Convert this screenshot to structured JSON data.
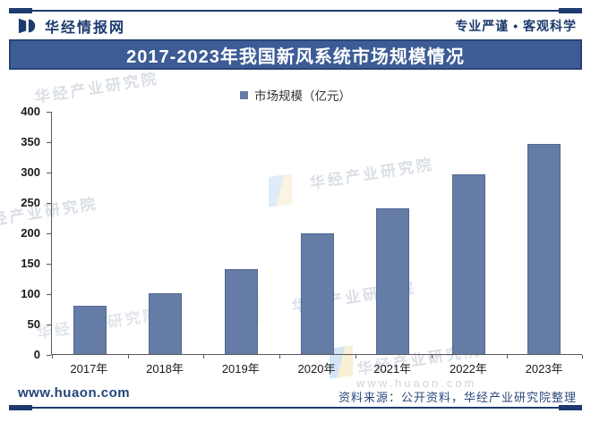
{
  "header": {
    "brand": "华经情报网",
    "slogan": "专业严谨 • 客观科学"
  },
  "title": "2017-2023年我国新风系统市场规模情况",
  "legend": {
    "label": "市场规模（亿元）"
  },
  "chart_data": {
    "type": "bar",
    "title": "2017-2023年我国新风系统市场规模情况",
    "categories": [
      "2017年",
      "2018年",
      "2019年",
      "2020年",
      "2021年",
      "2022年",
      "2023年"
    ],
    "values": [
      80,
      100,
      139,
      198,
      239,
      295,
      345
    ],
    "series_name": "市场规模（亿元）",
    "xlabel": "",
    "ylabel": "",
    "ylim": [
      0,
      400
    ],
    "ytick_step": 50,
    "bar_color": "#647ca6",
    "grid": false,
    "legend_position": "top-center"
  },
  "watermarks": {
    "text": "华经产业研究院",
    "url": "www.huaon.com"
  },
  "footer": {
    "site": "www.huaon.com",
    "source": "资料来源：公开资料，华经产业研究院整理"
  },
  "colors": {
    "navy": "#1d3a6e",
    "banner": "#3d5c96",
    "banner_border": "#2a4576",
    "bar": "#647ca6",
    "axis": "#595959"
  }
}
